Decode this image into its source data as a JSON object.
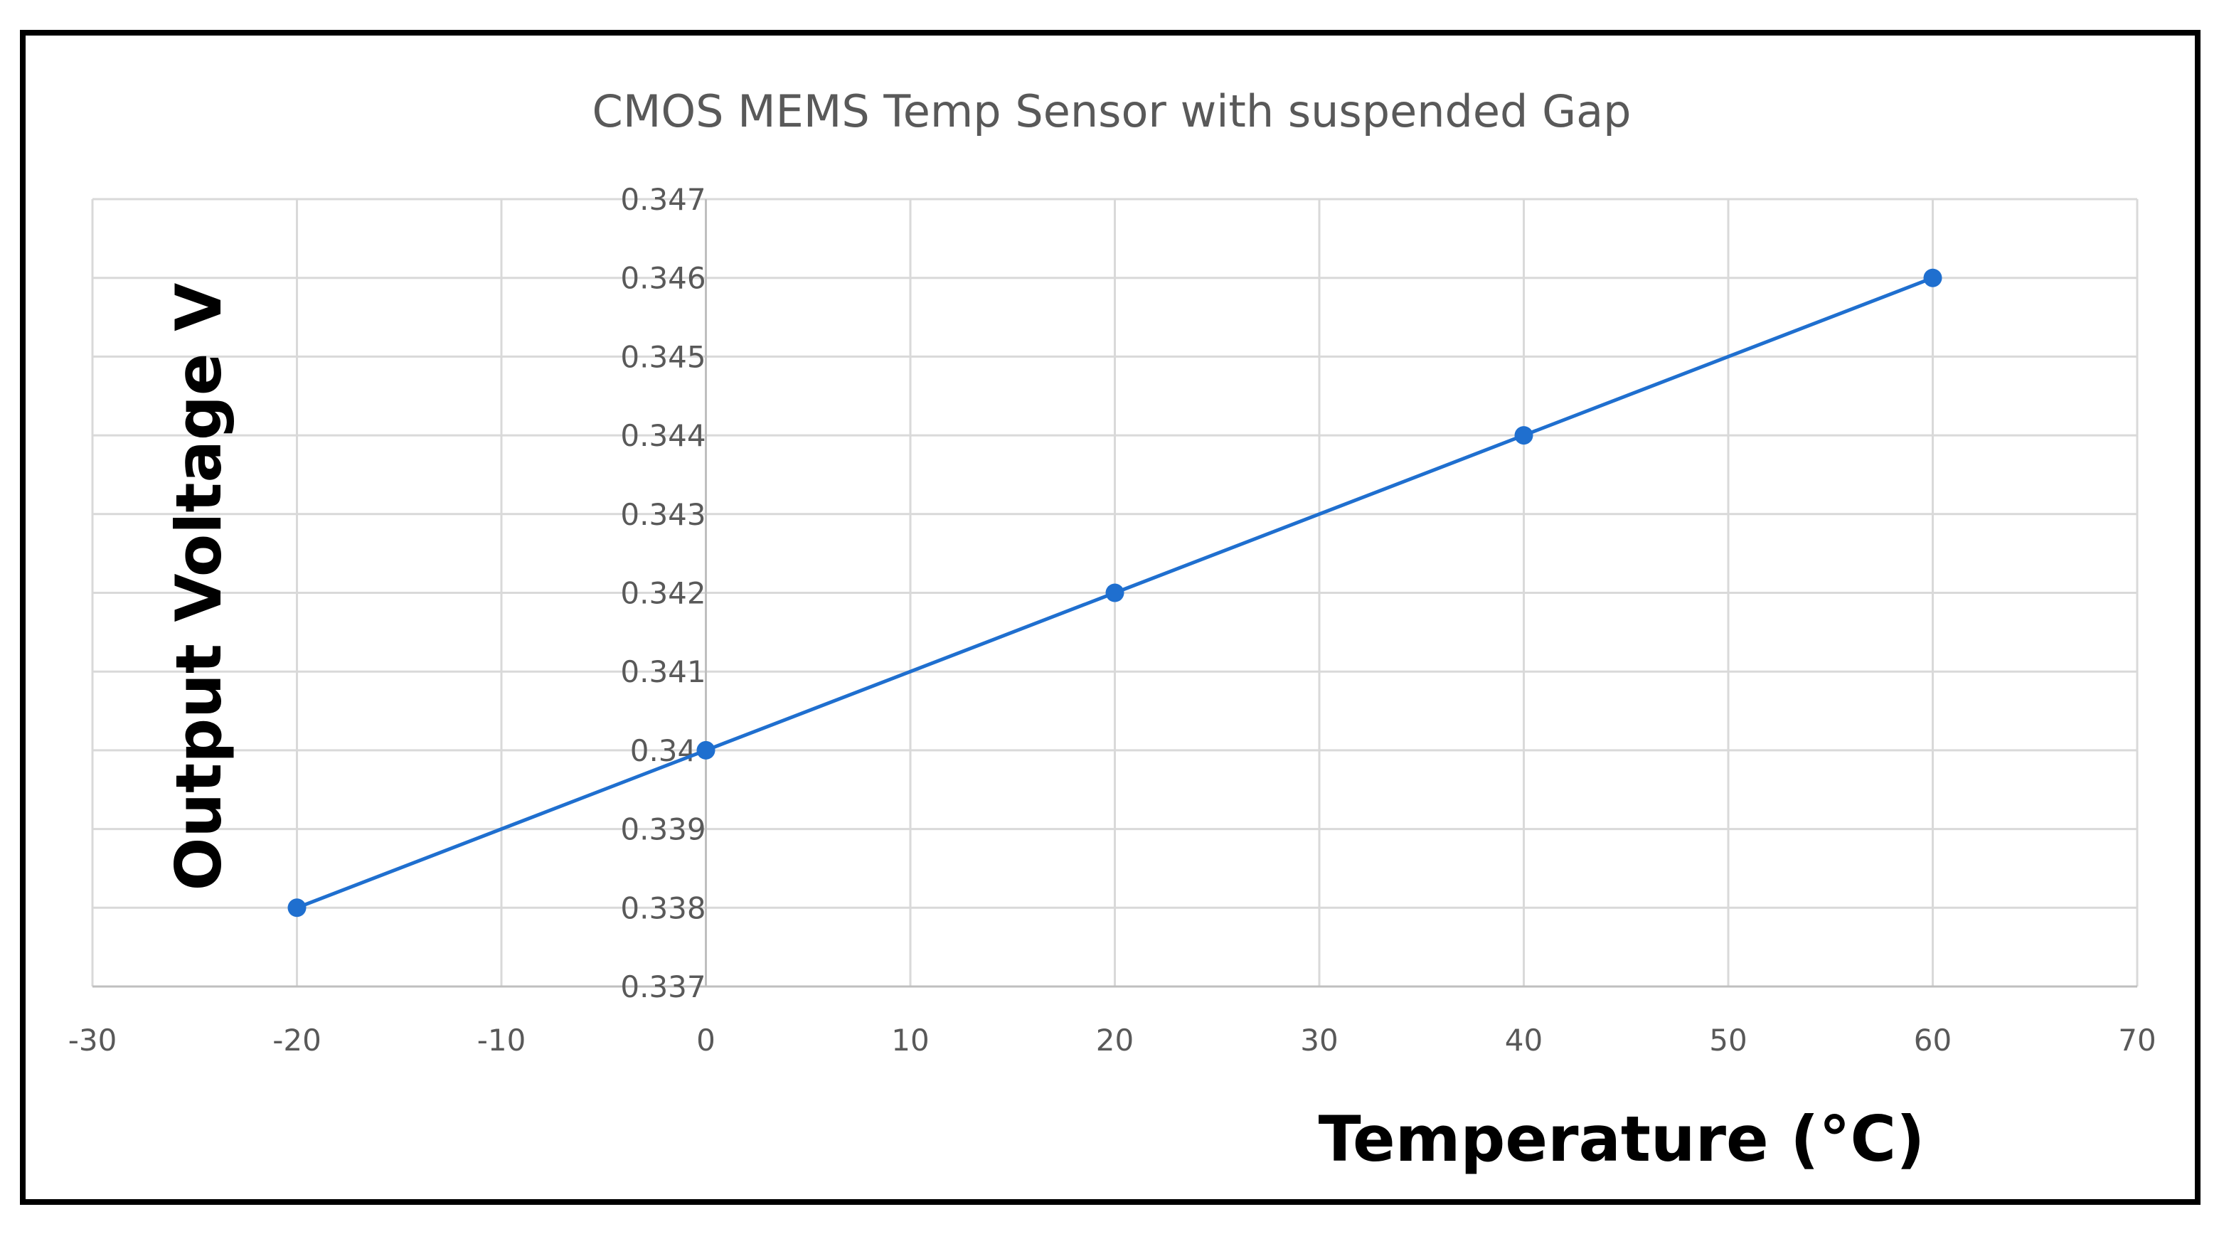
{
  "chart_data": {
    "type": "scatter",
    "title": "CMOS MEMS Temp Sensor with suspended Gap",
    "xlabel": "Temperature (°C)",
    "ylabel": "Output Voltage V",
    "xlim": [
      -30,
      70
    ],
    "ylim": [
      0.337,
      0.347
    ],
    "xticks": [
      "-30",
      "-20",
      "-10",
      "0",
      "10",
      "20",
      "30",
      "40",
      "50",
      "60",
      "70"
    ],
    "yticks": [
      "0.337",
      "0.338",
      "0.339",
      "0.34",
      "0.341",
      "0.342",
      "0.343",
      "0.344",
      "0.345",
      "0.346",
      "0.347"
    ],
    "grid": true,
    "series": [
      {
        "name": "Output Voltage",
        "color": "#1f6fcf",
        "x": [
          -20,
          0,
          20,
          40,
          60
        ],
        "y": [
          0.338,
          0.34,
          0.342,
          0.344,
          0.346
        ]
      }
    ]
  }
}
